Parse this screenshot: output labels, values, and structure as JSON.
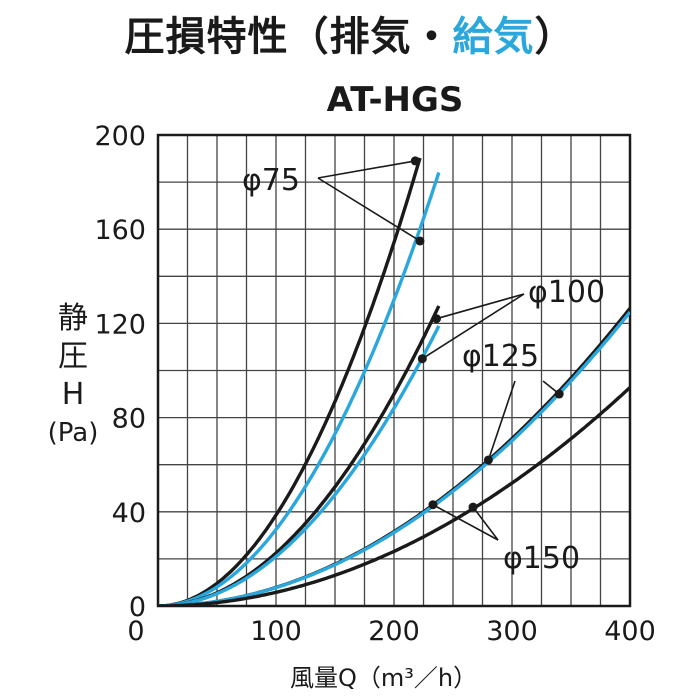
{
  "title": {
    "main": "圧損特性（排気・",
    "accent": "給気",
    "close": "）"
  },
  "subtitle": "AT-HGS",
  "colors": {
    "exhaust": "#1a1a1a",
    "supply": "#2aa7dc"
  },
  "chart_data": {
    "type": "line",
    "xlabel": "風量Q（m³／h）",
    "ylabel": [
      "静",
      "圧",
      "H",
      "(Pa)"
    ],
    "xlim": [
      0,
      400
    ],
    "ylim": [
      0,
      200
    ],
    "xticks": [
      "0",
      "100",
      "200",
      "300",
      "400"
    ],
    "yticks": [
      "0",
      "40",
      "80",
      "120",
      "160",
      "200"
    ],
    "grid": true,
    "series": [
      {
        "name": "φ75",
        "kind": "exhaust",
        "k": 0.00386,
        "n": 2,
        "xmax": 222
      },
      {
        "name": "φ75",
        "kind": "supply",
        "k": 0.00325,
        "n": 2,
        "xmax": 238
      },
      {
        "name": "φ100",
        "kind": "exhaust",
        "k": 0.00225,
        "n": 2,
        "xmax": 238
      },
      {
        "name": "φ100",
        "kind": "supply",
        "k": 0.0021,
        "n": 2,
        "xmax": 238
      },
      {
        "name": "φ125",
        "kind": "exhaust",
        "k": 0.00079,
        "n": 2,
        "xmax": 400
      },
      {
        "name": "φ125",
        "kind": "supply",
        "k": 0.00078,
        "n": 2,
        "xmax": 400
      },
      {
        "name": "φ150",
        "kind": "exhaust",
        "k": 0.00058,
        "n": 2,
        "xmax": 400
      }
    ],
    "markers": [
      {
        "x": 218,
        "y": 189
      },
      {
        "x": 222,
        "y": 155
      },
      {
        "x": 236,
        "y": 122
      },
      {
        "x": 224,
        "y": 105
      },
      {
        "x": 340,
        "y": 90
      },
      {
        "x": 280,
        "y": 62
      },
      {
        "x": 233,
        "y": 43
      },
      {
        "x": 267,
        "y": 42
      }
    ],
    "annotations": [
      {
        "text": "φ75"
      },
      {
        "text": "φ100"
      },
      {
        "text": "φ125"
      },
      {
        "text": "φ150"
      }
    ]
  }
}
